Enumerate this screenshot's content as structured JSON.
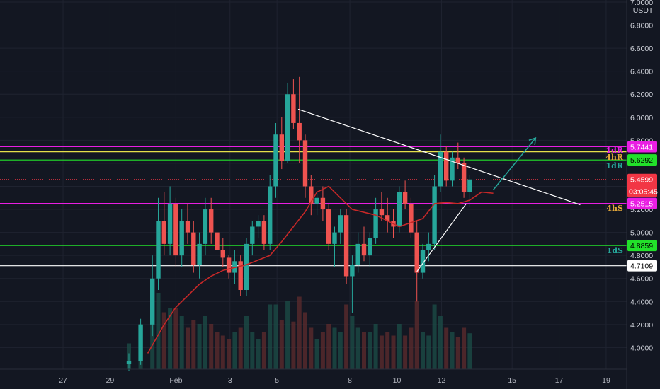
{
  "currency": "USDT",
  "price_axis": {
    "ticks": [
      "7.0000",
      "6.8000",
      "6.6000",
      "6.4000",
      "6.2000",
      "6.0000",
      "5.8000",
      "5.6000",
      "5.4000",
      "5.2000",
      "5.0000",
      "4.8000",
      "4.6000",
      "4.4000",
      "4.2000",
      "4.0000"
    ]
  },
  "time_axis": {
    "ticks": [
      "27",
      "29",
      "Feb",
      "3",
      "5",
      "8",
      "10",
      "12",
      "15",
      "17",
      "19"
    ]
  },
  "current_price": {
    "value": "5.4599",
    "countdown": "03:05:45"
  },
  "levels": [
    {
      "name": "resistance-magenta-top",
      "price": 5.7441,
      "label": "5.7441",
      "color": "#e91ee3",
      "tag_text_color": "#ffffff",
      "side_label": "1dR"
    },
    {
      "name": "resistance-yellow",
      "price": 5.7,
      "label": "",
      "color": "#e5e04a",
      "tag_text_color": "#000000",
      "side_label": "4hR"
    },
    {
      "name": "resistance-green",
      "price": 5.6292,
      "label": "5.6292",
      "color": "#22e02a",
      "tag_text_color": "#000000",
      "side_label": "1dR"
    },
    {
      "name": "support-magenta",
      "price": 5.2515,
      "label": "5.2515",
      "color": "#e91ee3",
      "tag_text_color": "#ffffff",
      "side_label": "4hS"
    },
    {
      "name": "support-green",
      "price": 4.8859,
      "label": "4.8859",
      "color": "#22e02a",
      "tag_text_color": "#000000",
      "side_label": "1dS"
    },
    {
      "name": "support-white",
      "price": 4.7109,
      "label": "4.7109",
      "color": "#ffffff",
      "tag_text_color": "#000000",
      "side_label": ""
    }
  ],
  "colors": {
    "up": "#26a69a",
    "down": "#ef5350",
    "ma": "#c62828",
    "price_tag": "#f23645",
    "trendline": "#ffffff",
    "arrow": "#26a69a"
  },
  "chart_data": {
    "type": "candlestick",
    "ylim": [
      3.85,
      7.0
    ],
    "x_tick_positions": [
      -2.8,
      -0.8,
      2,
      4.3,
      6.3,
      9.4,
      11.4,
      13.3,
      16.3,
      18.3,
      20.3
    ],
    "candles": [
      [
        0.0,
        3.86,
        3.95,
        3.8,
        3.88
      ],
      [
        0.5,
        3.88,
        4.25,
        3.85,
        4.2
      ],
      [
        1.0,
        4.2,
        4.8,
        4.1,
        4.6
      ],
      [
        1.25,
        4.6,
        5.3,
        4.5,
        5.1
      ],
      [
        1.5,
        5.1,
        5.35,
        4.8,
        4.9
      ],
      [
        1.75,
        4.9,
        5.4,
        4.8,
        5.25
      ],
      [
        2.0,
        5.25,
        5.3,
        4.7,
        4.8
      ],
      [
        2.25,
        4.8,
        5.2,
        4.7,
        5.1
      ],
      [
        2.5,
        5.1,
        5.25,
        4.9,
        5.0
      ],
      [
        2.75,
        5.0,
        5.1,
        4.65,
        4.72
      ],
      [
        3.0,
        4.72,
        5.0,
        4.6,
        4.9
      ],
      [
        3.25,
        4.9,
        5.3,
        4.8,
        5.2
      ],
      [
        3.5,
        5.2,
        5.3,
        4.9,
        5.0
      ],
      [
        3.75,
        5.0,
        5.05,
        4.75,
        4.85
      ],
      [
        4.0,
        4.85,
        4.95,
        4.7,
        4.78
      ],
      [
        4.25,
        4.78,
        4.8,
        4.6,
        4.65
      ],
      [
        4.5,
        4.65,
        4.85,
        4.55,
        4.75
      ],
      [
        4.75,
        4.75,
        4.8,
        4.45,
        4.5
      ],
      [
        5.0,
        4.5,
        4.95,
        4.45,
        4.9
      ],
      [
        5.25,
        4.9,
        5.1,
        4.8,
        5.05
      ],
      [
        5.5,
        5.05,
        5.15,
        4.95,
        5.1
      ],
      [
        5.75,
        5.1,
        5.15,
        4.85,
        4.9
      ],
      [
        6.0,
        4.9,
        5.5,
        4.85,
        5.4
      ],
      [
        6.25,
        5.4,
        5.95,
        5.3,
        5.85
      ],
      [
        6.5,
        5.85,
        6.0,
        5.55,
        5.62
      ],
      [
        6.75,
        5.62,
        6.3,
        5.6,
        6.2
      ],
      [
        7.0,
        6.2,
        6.33,
        5.9,
        5.95
      ],
      [
        7.25,
        5.95,
        6.35,
        5.6,
        5.8
      ],
      [
        7.5,
        5.8,
        5.85,
        5.3,
        5.4
      ],
      [
        7.75,
        5.4,
        5.5,
        5.15,
        5.25
      ],
      [
        8.0,
        5.25,
        5.35,
        5.15,
        5.3
      ],
      [
        8.25,
        5.3,
        5.4,
        5.1,
        5.2
      ],
      [
        8.5,
        5.2,
        5.25,
        4.85,
        4.9
      ],
      [
        8.75,
        4.9,
        5.05,
        4.7,
        5.0
      ],
      [
        9.0,
        5.0,
        5.2,
        4.9,
        5.15
      ],
      [
        9.25,
        5.15,
        5.2,
        4.55,
        4.62
      ],
      [
        9.5,
        4.62,
        4.8,
        4.3,
        4.72
      ],
      [
        9.75,
        4.72,
        5.0,
        4.65,
        4.9
      ],
      [
        10.0,
        4.9,
        5.05,
        4.75,
        4.8
      ],
      [
        10.25,
        4.8,
        5.0,
        4.7,
        4.95
      ],
      [
        10.5,
        4.95,
        5.3,
        4.9,
        5.2
      ],
      [
        10.75,
        5.2,
        5.35,
        5.1,
        5.15
      ],
      [
        11.0,
        5.15,
        5.3,
        5.0,
        5.1
      ],
      [
        11.25,
        5.1,
        5.2,
        4.95,
        5.05
      ],
      [
        11.5,
        5.05,
        5.4,
        5.0,
        5.35
      ],
      [
        11.75,
        5.35,
        5.45,
        5.2,
        5.25
      ],
      [
        12.0,
        5.25,
        5.3,
        4.95,
        5.0
      ],
      [
        12.25,
        5.0,
        5.1,
        4.4,
        4.65
      ],
      [
        12.5,
        4.65,
        4.9,
        4.6,
        4.85
      ],
      [
        12.75,
        4.85,
        5.0,
        4.75,
        4.9
      ],
      [
        13.0,
        4.9,
        5.5,
        4.85,
        5.4
      ],
      [
        13.25,
        5.4,
        5.85,
        5.35,
        5.7
      ],
      [
        13.5,
        5.7,
        5.75,
        5.4,
        5.45
      ],
      [
        13.75,
        5.45,
        5.7,
        5.4,
        5.65
      ],
      [
        14.0,
        5.65,
        5.78,
        5.55,
        5.6
      ],
      [
        14.25,
        5.6,
        5.65,
        5.3,
        5.35
      ],
      [
        14.5,
        5.35,
        5.5,
        5.22,
        5.46
      ]
    ],
    "moving_average": [
      [
        0.8,
        3.95
      ],
      [
        1.5,
        4.2
      ],
      [
        2.0,
        4.35
      ],
      [
        2.5,
        4.45
      ],
      [
        3.0,
        4.55
      ],
      [
        3.5,
        4.62
      ],
      [
        4.0,
        4.67
      ],
      [
        5.0,
        4.72
      ],
      [
        6.0,
        4.8
      ],
      [
        6.5,
        4.92
      ],
      [
        7.0,
        5.05
      ],
      [
        7.5,
        5.18
      ],
      [
        8.0,
        5.35
      ],
      [
        8.5,
        5.4
      ],
      [
        9.0,
        5.3
      ],
      [
        9.5,
        5.2
      ],
      [
        10.5,
        5.15
      ],
      [
        11.5,
        5.05
      ],
      [
        12.5,
        5.12
      ],
      [
        13.0,
        5.25
      ],
      [
        13.5,
        5.26
      ],
      [
        14.0,
        5.25
      ],
      [
        14.5,
        5.28
      ],
      [
        15.0,
        5.35
      ],
      [
        15.5,
        5.34
      ]
    ],
    "drawings": [
      {
        "kind": "trendline",
        "from": [
          7.2,
          6.07
        ],
        "to": [
          19.2,
          5.24
        ]
      },
      {
        "kind": "trendline",
        "from": [
          12.25,
          4.66
        ],
        "to": [
          14.35,
          5.25
        ]
      },
      {
        "kind": "arrow",
        "from": [
          15.5,
          5.37
        ],
        "to": [
          17.3,
          5.82
        ]
      }
    ]
  }
}
